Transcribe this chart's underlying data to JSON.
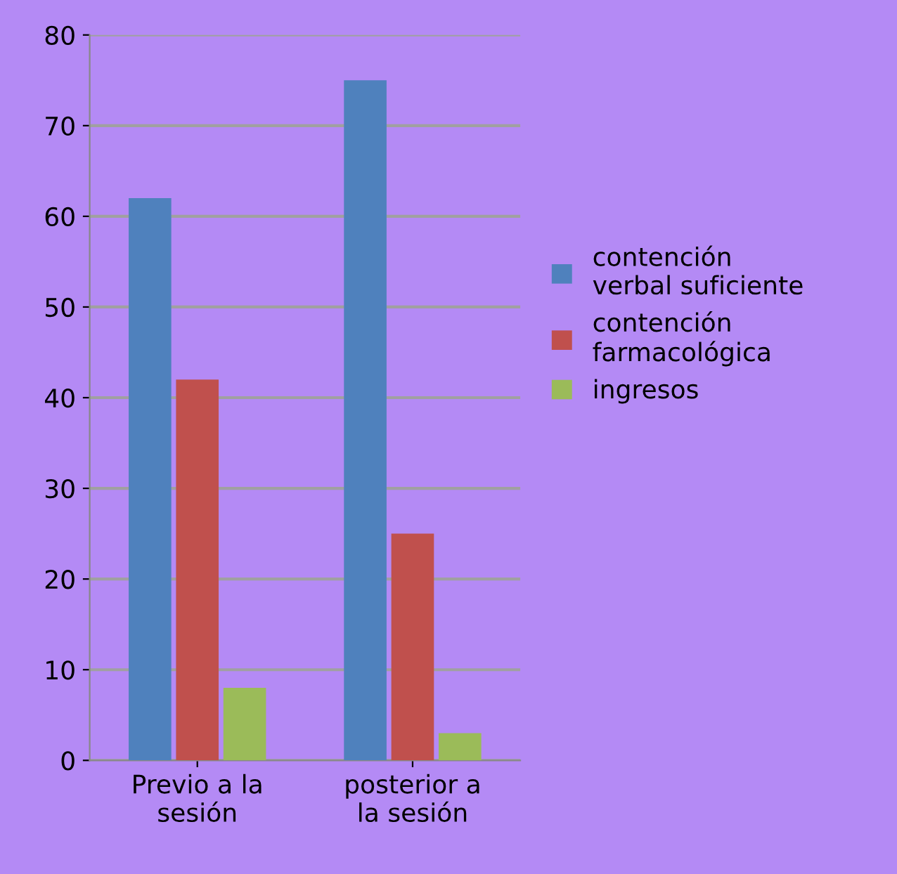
{
  "chart_data": {
    "type": "bar",
    "categories": [
      "Previo a la\nsesión",
      "posterior a\nla sesión"
    ],
    "series": [
      {
        "name": "contención\nverbal suficiente",
        "color": "#4f81bd",
        "values": [
          62,
          75
        ]
      },
      {
        "name": "contención\nfarmacológica",
        "color": "#c0504d",
        "values": [
          42,
          25
        ]
      },
      {
        "name": "ingresos",
        "color": "#9bbb59",
        "values": [
          8,
          3
        ]
      }
    ],
    "ylim": [
      0,
      80
    ],
    "yticks": [
      0,
      10,
      20,
      30,
      40,
      50,
      60,
      70,
      80
    ],
    "grid": "y",
    "legend": "right"
  }
}
